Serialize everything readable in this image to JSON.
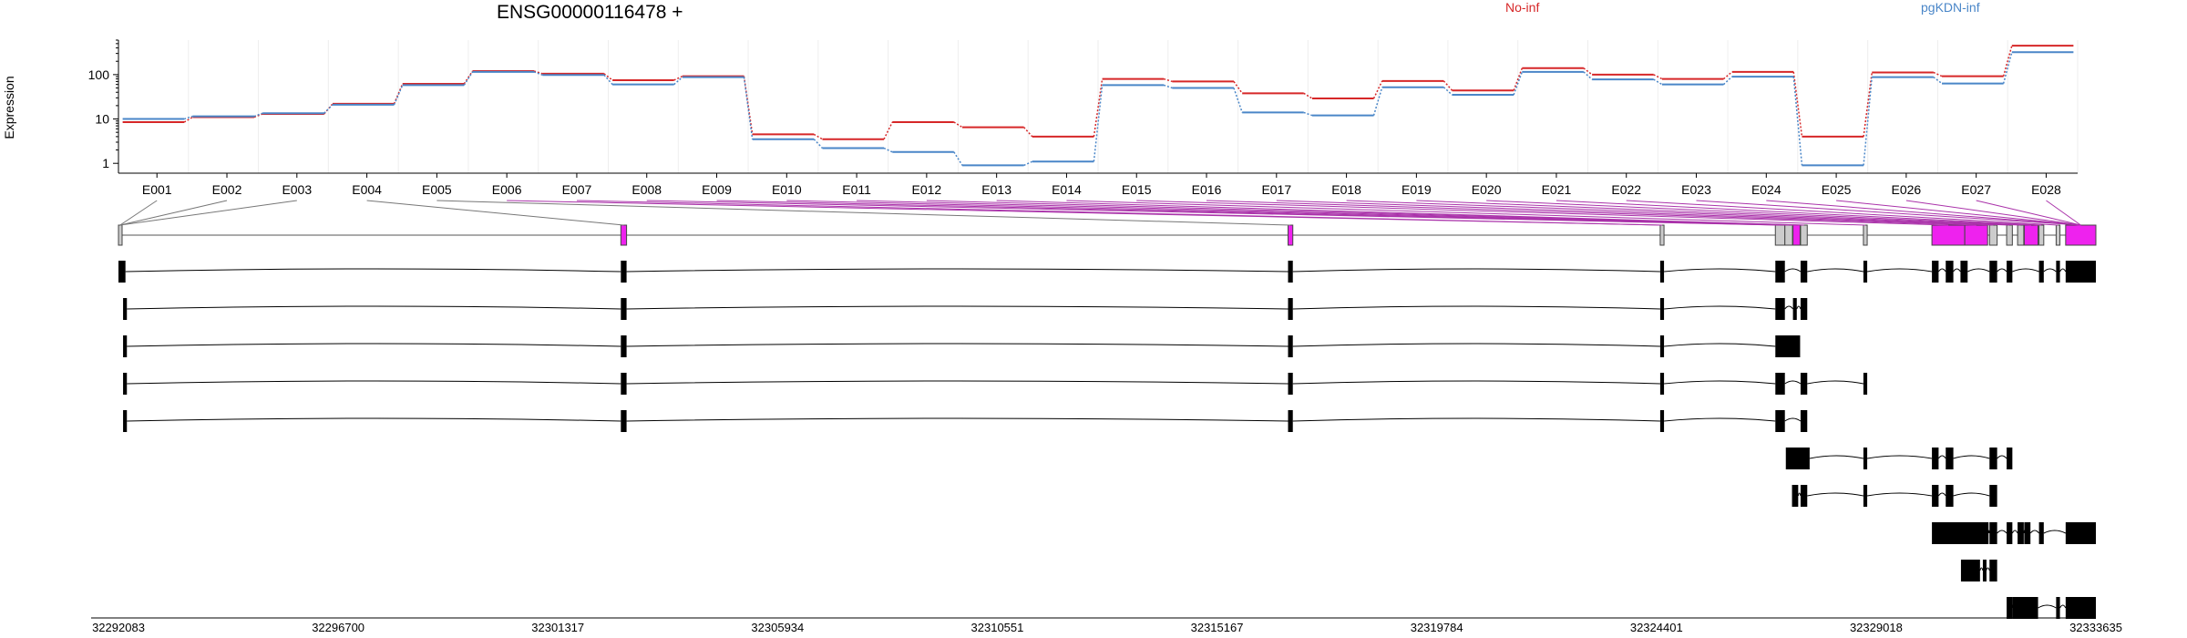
{
  "chart_data": {
    "type": "line",
    "title": "ENSG00000116478 +",
    "ylabel": "Expression",
    "y_scale": "log",
    "yticks": [
      "1",
      "10",
      "100"
    ],
    "ylim": [
      0.6,
      600
    ],
    "categories": [
      "E001",
      "E002",
      "E003",
      "E004",
      "E005",
      "E006",
      "E007",
      "E008",
      "E009",
      "E010",
      "E011",
      "E012",
      "E013",
      "E014",
      "E015",
      "E016",
      "E017",
      "E018",
      "E019",
      "E020",
      "E021",
      "E022",
      "E023",
      "E024",
      "E025",
      "E026",
      "E027",
      "E028"
    ],
    "series": [
      {
        "name": "No-inf",
        "color": "#d62728",
        "values": [
          8.5,
          11,
          13,
          22,
          62,
          120,
          105,
          75,
          92,
          4.5,
          3.5,
          8.5,
          6.5,
          4,
          80,
          70,
          38,
          29,
          72,
          44,
          140,
          100,
          80,
          115,
          4,
          112,
          92,
          450
        ]
      },
      {
        "name": "pgKDN-inf",
        "color": "#4a86c8",
        "values": [
          10,
          11.5,
          13.5,
          21,
          58,
          115,
          98,
          60,
          88,
          3.5,
          2.2,
          1.8,
          0.9,
          1.1,
          58,
          50,
          14,
          12,
          52,
          35,
          115,
          78,
          60,
          90,
          0.9,
          88,
          63,
          320
        ]
      }
    ],
    "genomic_axis": {
      "ticks": [
        "32292083",
        "32296700",
        "32301317",
        "32305934",
        "32310551",
        "32315167",
        "32319784",
        "32324401",
        "32329018",
        "32333635"
      ],
      "start": 32292083,
      "end": 32333635
    },
    "exon_model": {
      "exons": [
        {
          "start": 32292083,
          "end": 32292150,
          "highlight": false
        },
        {
          "start": 32302640,
          "end": 32302760,
          "highlight": true
        },
        {
          "start": 32316660,
          "end": 32316760,
          "highlight": true
        },
        {
          "start": 32324480,
          "end": 32324560,
          "highlight": false
        },
        {
          "start": 32326900,
          "end": 32327100,
          "highlight": false
        },
        {
          "start": 32327100,
          "end": 32327260,
          "highlight": false
        },
        {
          "start": 32327270,
          "end": 32327420,
          "highlight": true
        },
        {
          "start": 32327430,
          "end": 32327570,
          "highlight": false
        },
        {
          "start": 32328750,
          "end": 32328830,
          "highlight": false
        },
        {
          "start": 32330190,
          "end": 32330880,
          "highlight": true
        },
        {
          "start": 32330880,
          "end": 32331360,
          "highlight": true
        },
        {
          "start": 32331400,
          "end": 32331560,
          "highlight": false
        },
        {
          "start": 32331760,
          "end": 32331880,
          "highlight": false
        },
        {
          "start": 32331990,
          "end": 32332120,
          "highlight": false
        },
        {
          "start": 32332130,
          "end": 32332420,
          "highlight": true
        },
        {
          "start": 32332440,
          "end": 32332540,
          "highlight": false
        },
        {
          "start": 32332800,
          "end": 32332880,
          "highlight": false
        },
        {
          "start": 32333000,
          "end": 32333635,
          "highlight": true
        }
      ],
      "exon_bin_for_label": [
        0,
        0,
        0,
        1,
        2,
        3,
        3,
        4,
        4,
        5,
        6,
        7,
        7,
        8,
        9,
        10,
        11,
        12,
        13,
        14,
        15,
        16,
        17,
        17,
        17,
        17,
        17,
        17
      ],
      "highlighted_bins": [
        5,
        6,
        7,
        8,
        9,
        10,
        11,
        12,
        13,
        14,
        15,
        16,
        17,
        18,
        19,
        20,
        21,
        22,
        23,
        24,
        25,
        26,
        27
      ]
    },
    "transcripts": [
      {
        "exons": [
          [
            32292083,
            32292230
          ],
          [
            32302640,
            32302760
          ],
          [
            32316660,
            32316760
          ],
          [
            32324480,
            32324560
          ],
          [
            32326900,
            32327100
          ],
          [
            32327430,
            32327570
          ],
          [
            32328750,
            32328830
          ],
          [
            32330190,
            32330330
          ],
          [
            32330480,
            32330640
          ],
          [
            32330790,
            32330940
          ],
          [
            32331400,
            32331560
          ],
          [
            32331760,
            32331880
          ],
          [
            32332440,
            32332540
          ],
          [
            32332800,
            32332880
          ],
          [
            32333000,
            32333635
          ]
        ]
      },
      {
        "exons": [
          [
            32292180,
            32292260
          ],
          [
            32302640,
            32302760
          ],
          [
            32316660,
            32316760
          ],
          [
            32324480,
            32324560
          ],
          [
            32326900,
            32327100
          ],
          [
            32327270,
            32327350
          ],
          [
            32327430,
            32327570
          ]
        ]
      },
      {
        "exons": [
          [
            32292180,
            32292260
          ],
          [
            32302640,
            32302760
          ],
          [
            32316660,
            32316760
          ],
          [
            32324480,
            32324560
          ],
          [
            32326900,
            32327420
          ]
        ]
      },
      {
        "exons": [
          [
            32292180,
            32292260
          ],
          [
            32302640,
            32302760
          ],
          [
            32316660,
            32316760
          ],
          [
            32324480,
            32324560
          ],
          [
            32326900,
            32327100
          ],
          [
            32327430,
            32327570
          ],
          [
            32328750,
            32328830
          ]
        ]
      },
      {
        "exons": [
          [
            32292180,
            32292260
          ],
          [
            32302640,
            32302760
          ],
          [
            32316660,
            32316760
          ],
          [
            32324480,
            32324560
          ],
          [
            32326900,
            32327100
          ],
          [
            32327430,
            32327570
          ]
        ]
      },
      {
        "exons": [
          [
            32327120,
            32327620
          ],
          [
            32328750,
            32328830
          ],
          [
            32330190,
            32330330
          ],
          [
            32330480,
            32330640
          ],
          [
            32331400,
            32331560
          ],
          [
            32331760,
            32331880
          ]
        ]
      },
      {
        "exons": [
          [
            32327250,
            32327380
          ],
          [
            32327430,
            32327570
          ],
          [
            32328750,
            32328830
          ],
          [
            32330190,
            32330330
          ],
          [
            32330480,
            32330640
          ],
          [
            32331400,
            32331560
          ]
        ]
      },
      {
        "exons": [
          [
            32330190,
            32331380
          ],
          [
            32331400,
            32331560
          ],
          [
            32331760,
            32331880
          ],
          [
            32331990,
            32332120
          ],
          [
            32332130,
            32332260
          ],
          [
            32332440,
            32332540
          ],
          [
            32333000,
            32333635
          ]
        ]
      },
      {
        "exons": [
          [
            32330800,
            32331200
          ],
          [
            32331260,
            32331330
          ],
          [
            32331400,
            32331560
          ]
        ]
      },
      {
        "exons": [
          [
            32331760,
            32331880
          ],
          [
            32331880,
            32332420
          ],
          [
            32332800,
            32332880
          ],
          [
            32333000,
            32333635
          ]
        ]
      }
    ]
  }
}
